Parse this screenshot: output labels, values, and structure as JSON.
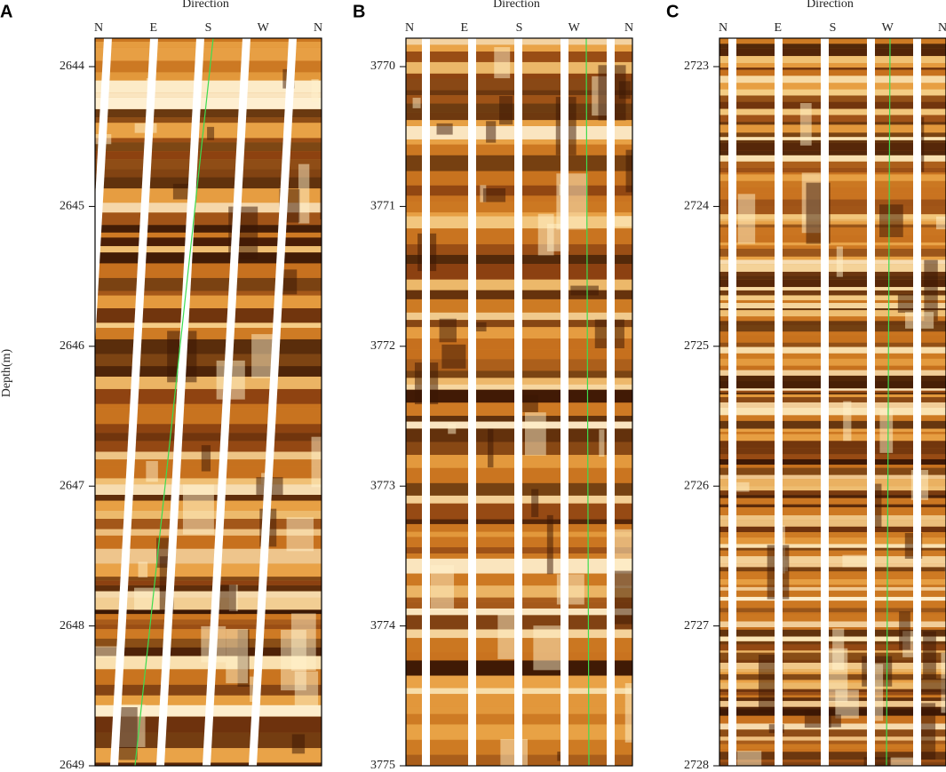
{
  "y_label": "Depth(m)",
  "panels": [
    {
      "label": "A",
      "axis_title": "Direction",
      "directions": [
        "N",
        "E",
        "S",
        "W",
        "N"
      ],
      "depth_ticks": [
        2644,
        2645,
        2646,
        2647,
        2648,
        2649
      ]
    },
    {
      "label": "B",
      "axis_title": "Direction",
      "directions": [
        "N",
        "E",
        "S",
        "W",
        "N"
      ],
      "depth_ticks": [
        3770,
        3771,
        3772,
        3773,
        3774,
        3775
      ]
    },
    {
      "label": "C",
      "axis_title": "Direction",
      "directions": [
        "N",
        "E",
        "S",
        "W",
        "N"
      ],
      "depth_ticks": [
        2723,
        2724,
        2725,
        2726,
        2727,
        2728
      ]
    }
  ]
}
